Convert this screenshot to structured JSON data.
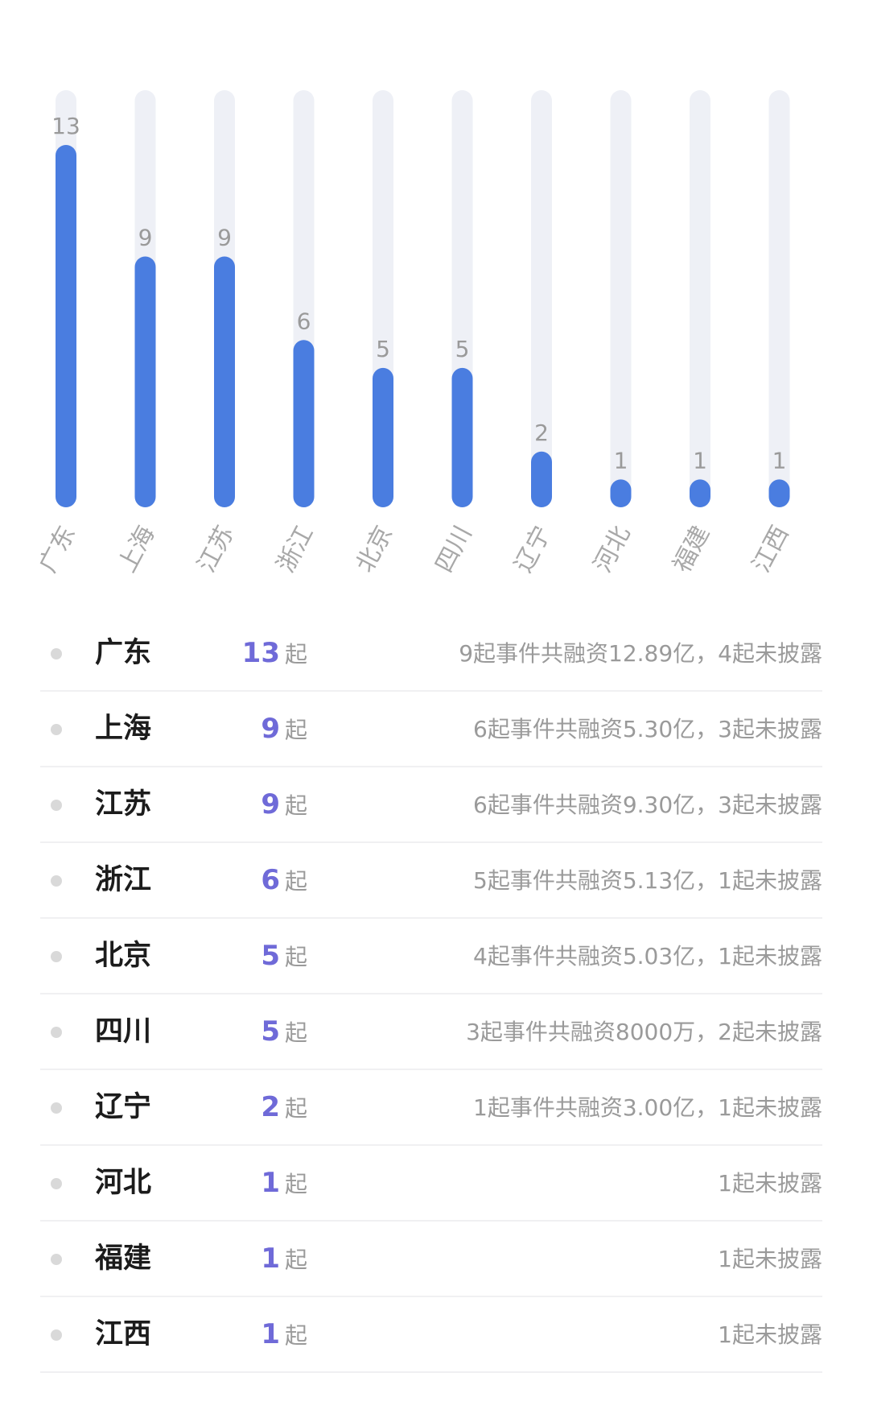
{
  "chart_data": {
    "type": "bar",
    "categories": [
      "广东",
      "上海",
      "江苏",
      "浙江",
      "北京",
      "四川",
      "辽宁",
      "河北",
      "福建",
      "江西"
    ],
    "values": [
      13,
      9,
      9,
      6,
      5,
      5,
      2,
      1,
      1,
      1
    ],
    "ylim": [
      0,
      13
    ],
    "title": "",
    "xlabel": "",
    "ylabel": "",
    "grid": false,
    "legend": "none",
    "colors": {
      "bar": "#4a7de0",
      "track": "#eef0f6",
      "value_label": "#9a9a9a",
      "category_label": "#a8a8a8"
    }
  },
  "table": {
    "unit": "起",
    "rows": [
      {
        "region": "广东",
        "count": "13",
        "detail": "9起事件共融资12.89亿，4起未披露"
      },
      {
        "region": "上海",
        "count": "9",
        "detail": "6起事件共融资5.30亿，3起未披露"
      },
      {
        "region": "江苏",
        "count": "9",
        "detail": "6起事件共融资9.30亿，3起未披露"
      },
      {
        "region": "浙江",
        "count": "6",
        "detail": "5起事件共融资5.13亿，1起未披露"
      },
      {
        "region": "北京",
        "count": "5",
        "detail": "4起事件共融资5.03亿，1起未披露"
      },
      {
        "region": "四川",
        "count": "5",
        "detail": "3起事件共融资8000万，2起未披露"
      },
      {
        "region": "辽宁",
        "count": "2",
        "detail": "1起事件共融资3.00亿，1起未披露"
      },
      {
        "region": "河北",
        "count": "1",
        "detail": "1起未披露"
      },
      {
        "region": "福建",
        "count": "1",
        "detail": "1起未披露"
      },
      {
        "region": "江西",
        "count": "1",
        "detail": "1起未披露"
      }
    ],
    "colors": {
      "count": "#6f6ad8",
      "region": "#1c1c1c",
      "detail": "#9a9a9a",
      "dot": "#d9d9d9",
      "divider": "#f0f0f2"
    }
  }
}
